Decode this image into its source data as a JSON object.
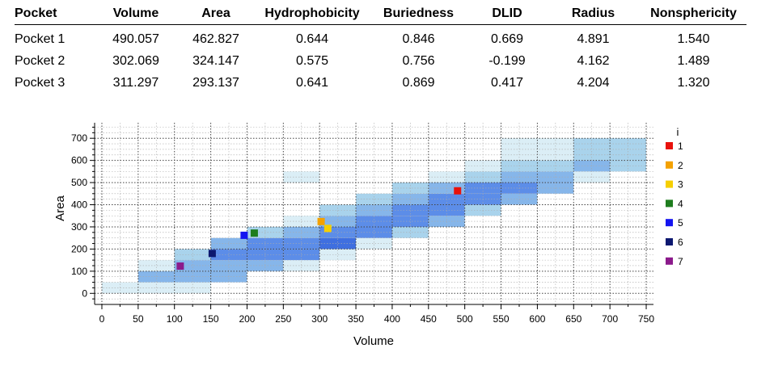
{
  "table": {
    "headers": [
      "Pocket",
      "Volume",
      "Area",
      "Hydrophobicity",
      "Buriedness",
      "DLID",
      "Radius",
      "Nonsphericity"
    ],
    "rows": [
      [
        "Pocket 1",
        "490.057",
        "462.827",
        "0.644",
        "0.846",
        "0.669",
        "4.891",
        "1.540"
      ],
      [
        "Pocket 2",
        "302.069",
        "324.147",
        "0.575",
        "0.756",
        "-0.199",
        "4.162",
        "1.489"
      ],
      [
        "Pocket 3",
        "311.297",
        "293.137",
        "0.641",
        "0.869",
        "0.417",
        "4.204",
        "1.320"
      ]
    ]
  },
  "chart_data": {
    "type": "heatmap",
    "title": "",
    "xlabel": "Volume",
    "ylabel": "Area",
    "xlim": [
      -10,
      760
    ],
    "ylim": [
      -50,
      770
    ],
    "xticks": [
      0,
      50,
      100,
      150,
      200,
      250,
      300,
      350,
      400,
      450,
      500,
      550,
      600,
      650,
      700,
      750
    ],
    "yticks": [
      0,
      100,
      200,
      300,
      400,
      500,
      600,
      700
    ],
    "grid": true,
    "bin_width": 50,
    "bin_height": 50,
    "bins": [
      {
        "x": 0,
        "y": 0,
        "level": 1
      },
      {
        "x": 50,
        "y": 0,
        "level": 1
      },
      {
        "x": 100,
        "y": 0,
        "level": 1
      },
      {
        "x": 50,
        "y": 50,
        "level": 3
      },
      {
        "x": 100,
        "y": 50,
        "level": 3
      },
      {
        "x": 150,
        "y": 50,
        "level": 3
      },
      {
        "x": 50,
        "y": 100,
        "level": 1
      },
      {
        "x": 100,
        "y": 100,
        "level": 3
      },
      {
        "x": 150,
        "y": 100,
        "level": 3
      },
      {
        "x": 200,
        "y": 100,
        "level": 3
      },
      {
        "x": 250,
        "y": 100,
        "level": 1
      },
      {
        "x": 100,
        "y": 150,
        "level": 2
      },
      {
        "x": 150,
        "y": 150,
        "level": 4
      },
      {
        "x": 200,
        "y": 150,
        "level": 4
      },
      {
        "x": 250,
        "y": 150,
        "level": 4
      },
      {
        "x": 300,
        "y": 150,
        "level": 1
      },
      {
        "x": 150,
        "y": 200,
        "level": 3
      },
      {
        "x": 200,
        "y": 200,
        "level": 4
      },
      {
        "x": 250,
        "y": 200,
        "level": 4
      },
      {
        "x": 300,
        "y": 200,
        "level": 5
      },
      {
        "x": 350,
        "y": 200,
        "level": 1
      },
      {
        "x": 200,
        "y": 250,
        "level": 2
      },
      {
        "x": 250,
        "y": 250,
        "level": 3
      },
      {
        "x": 300,
        "y": 250,
        "level": 4
      },
      {
        "x": 350,
        "y": 250,
        "level": 4
      },
      {
        "x": 400,
        "y": 250,
        "level": 2
      },
      {
        "x": 250,
        "y": 300,
        "level": 1
      },
      {
        "x": 300,
        "y": 300,
        "level": 3
      },
      {
        "x": 350,
        "y": 300,
        "level": 4
      },
      {
        "x": 400,
        "y": 300,
        "level": 4
      },
      {
        "x": 450,
        "y": 300,
        "level": 3
      },
      {
        "x": 300,
        "y": 350,
        "level": 2
      },
      {
        "x": 350,
        "y": 350,
        "level": 3
      },
      {
        "x": 400,
        "y": 350,
        "level": 4
      },
      {
        "x": 450,
        "y": 350,
        "level": 4
      },
      {
        "x": 500,
        "y": 350,
        "level": 2
      },
      {
        "x": 350,
        "y": 400,
        "level": 2
      },
      {
        "x": 400,
        "y": 400,
        "level": 3
      },
      {
        "x": 450,
        "y": 400,
        "level": 4
      },
      {
        "x": 500,
        "y": 400,
        "level": 4
      },
      {
        "x": 550,
        "y": 400,
        "level": 3
      },
      {
        "x": 400,
        "y": 450,
        "level": 2
      },
      {
        "x": 450,
        "y": 450,
        "level": 3
      },
      {
        "x": 500,
        "y": 450,
        "level": 4
      },
      {
        "x": 550,
        "y": 450,
        "level": 4
      },
      {
        "x": 600,
        "y": 450,
        "level": 3
      },
      {
        "x": 250,
        "y": 500,
        "level": 1
      },
      {
        "x": 450,
        "y": 500,
        "level": 1
      },
      {
        "x": 500,
        "y": 500,
        "level": 2
      },
      {
        "x": 550,
        "y": 500,
        "level": 3
      },
      {
        "x": 600,
        "y": 500,
        "level": 3
      },
      {
        "x": 650,
        "y": 500,
        "level": 1
      },
      {
        "x": 500,
        "y": 550,
        "level": 1
      },
      {
        "x": 550,
        "y": 550,
        "level": 2
      },
      {
        "x": 600,
        "y": 550,
        "level": 2
      },
      {
        "x": 650,
        "y": 550,
        "level": 3
      },
      {
        "x": 700,
        "y": 550,
        "level": 2
      },
      {
        "x": 550,
        "y": 600,
        "level": 1
      },
      {
        "x": 600,
        "y": 600,
        "level": 1
      },
      {
        "x": 650,
        "y": 600,
        "level": 2
      },
      {
        "x": 700,
        "y": 600,
        "level": 2
      },
      {
        "x": 550,
        "y": 650,
        "level": 1
      },
      {
        "x": 600,
        "y": 650,
        "level": 1
      },
      {
        "x": 650,
        "y": 650,
        "level": 2
      },
      {
        "x": 700,
        "y": 650,
        "level": 2
      }
    ],
    "level_colors": {
      "1": "#dbeef6",
      "2": "#a9d3ec",
      "3": "#86b6ea",
      "4": "#5c8de8",
      "5": "#3f6fe0"
    },
    "points": [
      {
        "i": "1",
        "x": 490.057,
        "y": 462.827,
        "color": "#e8120c"
      },
      {
        "i": "2",
        "x": 302.069,
        "y": 324.147,
        "color": "#f4a100"
      },
      {
        "i": "3",
        "x": 311.297,
        "y": 293.137,
        "color": "#f6cf00"
      },
      {
        "i": "4",
        "x": 210,
        "y": 272,
        "color": "#1e7d1e"
      },
      {
        "i": "5",
        "x": 196,
        "y": 262,
        "color": "#1414f0"
      },
      {
        "i": "6",
        "x": 152,
        "y": 180,
        "color": "#0c1870"
      },
      {
        "i": "7",
        "x": 108,
        "y": 123,
        "color": "#8b1a8b"
      }
    ],
    "legend": {
      "title": "i",
      "position": "right"
    }
  }
}
